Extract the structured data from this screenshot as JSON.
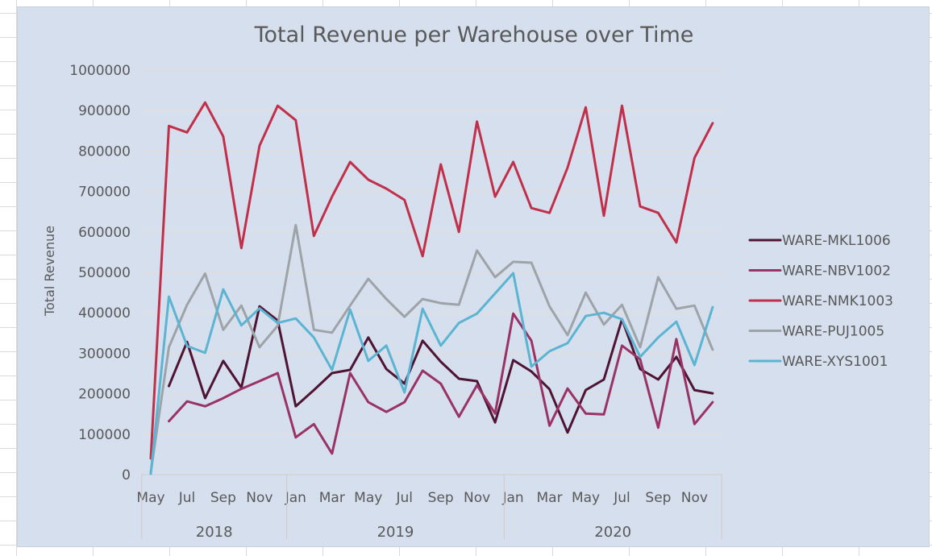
{
  "chart_data": {
    "type": "line",
    "title": "Total Revenue per Warehouse over Time",
    "xlabel": "",
    "ylabel": "Total Revenue",
    "ylim": [
      0,
      1000000
    ],
    "y_ticks": [
      "0",
      "100000",
      "200000",
      "300000",
      "400000",
      "500000",
      "600000",
      "700000",
      "800000",
      "900000",
      "1000000"
    ],
    "y_tick_values": [
      0,
      100000,
      200000,
      300000,
      400000,
      500000,
      600000,
      700000,
      800000,
      900000,
      1000000
    ],
    "grid": true,
    "legend_position": "right",
    "x": [
      "May 2018",
      "Jun 2018",
      "Jul 2018",
      "Aug 2018",
      "Sep 2018",
      "Oct 2018",
      "Nov 2018",
      "Dec 2018",
      "Jan 2019",
      "Feb 2019",
      "Mar 2019",
      "Apr 2019",
      "May 2019",
      "Jun 2019",
      "Jul 2019",
      "Aug 2019",
      "Sep 2019",
      "Oct 2019",
      "Nov 2019",
      "Dec 2019",
      "Jan 2020",
      "Feb 2020",
      "Mar 2020",
      "Apr 2020",
      "May 2020",
      "Jun 2020",
      "Jul 2020",
      "Aug 2020",
      "Sep 2020",
      "Oct 2020",
      "Nov 2020",
      "Dec 2020"
    ],
    "x_tick_labels": [
      {
        "index": 0,
        "label": "May"
      },
      {
        "index": 2,
        "label": "Jul"
      },
      {
        "index": 4,
        "label": "Sep"
      },
      {
        "index": 6,
        "label": "Nov"
      },
      {
        "index": 8,
        "label": "Jan"
      },
      {
        "index": 10,
        "label": "Mar"
      },
      {
        "index": 12,
        "label": "May"
      },
      {
        "index": 14,
        "label": "Jul"
      },
      {
        "index": 16,
        "label": "Sep"
      },
      {
        "index": 18,
        "label": "Nov"
      },
      {
        "index": 20,
        "label": "Jan"
      },
      {
        "index": 22,
        "label": "Mar"
      },
      {
        "index": 24,
        "label": "May"
      },
      {
        "index": 26,
        "label": "Jul"
      },
      {
        "index": 28,
        "label": "Sep"
      },
      {
        "index": 30,
        "label": "Nov"
      }
    ],
    "year_groups": [
      {
        "label": "2018",
        "start": 0,
        "end": 7
      },
      {
        "label": "2019",
        "start": 8,
        "end": 19
      },
      {
        "label": "2020",
        "start": 20,
        "end": 31
      }
    ],
    "series": [
      {
        "name": "WARE-MKL1006",
        "color": "#4f1434",
        "values": [
          null,
          219000,
          328000,
          189000,
          281000,
          215000,
          416000,
          381000,
          169000,
          209000,
          251000,
          259000,
          339000,
          261000,
          225000,
          331000,
          279000,
          237000,
          231000,
          129000,
          283000,
          255000,
          211000,
          104000,
          209000,
          235000,
          384000,
          261000,
          235000,
          291000,
          209000,
          201000
        ]
      },
      {
        "name": "WARE-NBV1002",
        "color": "#993366",
        "values": [
          null,
          132000,
          181000,
          169000,
          189000,
          212000,
          231000,
          251000,
          92000,
          125000,
          52000,
          251000,
          179000,
          155000,
          179000,
          257000,
          225000,
          143000,
          221000,
          151000,
          398000,
          331000,
          121000,
          213000,
          151000,
          149000,
          319000,
          285000,
          116000,
          335000,
          125000,
          179000
        ]
      },
      {
        "name": "WARE-NMK1003",
        "color": "#c0304b",
        "values": [
          40000,
          862000,
          846000,
          920000,
          836000,
          560000,
          813000,
          912000,
          876000,
          590000,
          687000,
          773000,
          729000,
          707000,
          679000,
          540000,
          767000,
          600000,
          873000,
          687000,
          773000,
          659000,
          647000,
          759000,
          908000,
          640000,
          912000,
          663000,
          647000,
          574000,
          783000,
          869000
        ]
      },
      {
        "name": "WARE-PUJ1005",
        "color": "#9ea3a8",
        "values": [
          5000,
          315000,
          420000,
          497000,
          358000,
          418000,
          315000,
          368000,
          617000,
          358000,
          351000,
          418000,
          484000,
          434000,
          390000,
          434000,
          424000,
          420000,
          554000,
          488000,
          526000,
          524000,
          416000,
          345000,
          450000,
          371000,
          420000,
          315000,
          488000,
          410000,
          418000,
          309000
        ]
      },
      {
        "name": "WARE-XYS1001",
        "color": "#5ab4d2",
        "values": [
          2000,
          440000,
          318000,
          301000,
          458000,
          369000,
          411000,
          375000,
          386000,
          339000,
          259000,
          408000,
          281000,
          319000,
          203000,
          410000,
          319000,
          375000,
          398000,
          448000,
          498000,
          267000,
          305000,
          325000,
          392000,
          400000,
          384000,
          291000,
          339000,
          378000,
          271000,
          414000
        ]
      }
    ]
  }
}
